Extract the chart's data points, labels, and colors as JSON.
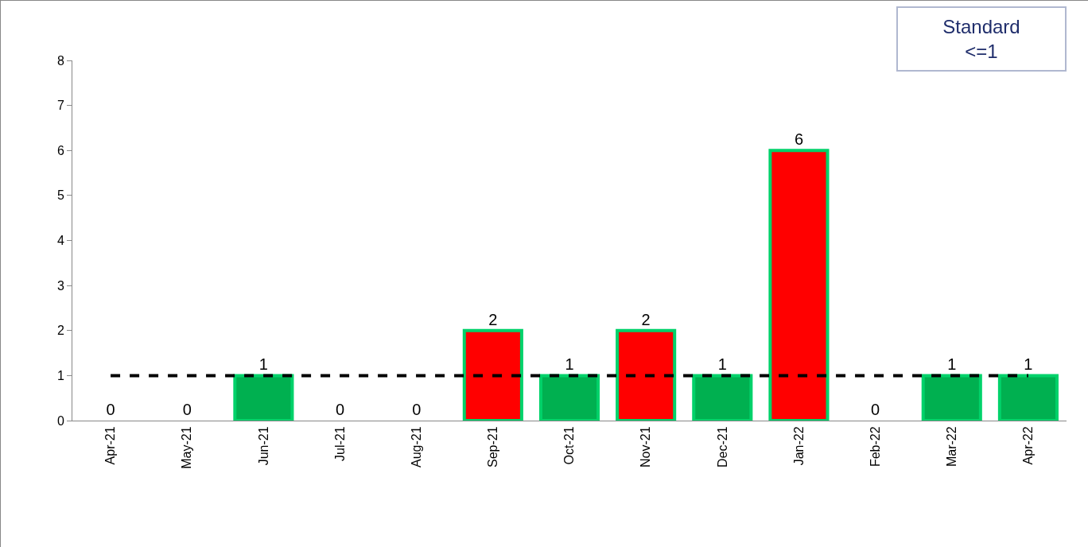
{
  "chart_data": {
    "type": "bar",
    "categories": [
      "Apr-21",
      "May-21",
      "Jun-21",
      "Jul-21",
      "Aug-21",
      "Sep-21",
      "Oct-21",
      "Nov-21",
      "Dec-21",
      "Jan-22",
      "Feb-22",
      "Mar-22",
      "Apr-22"
    ],
    "values": [
      0,
      0,
      1,
      0,
      0,
      2,
      1,
      2,
      1,
      6,
      0,
      1,
      1
    ],
    "colors": [
      "#00b050",
      "#00b050",
      "#00b050",
      "#00b050",
      "#00b050",
      "#ff0000",
      "#00b050",
      "#ff0000",
      "#00b050",
      "#ff0000",
      "#00b050",
      "#00b050",
      "#00b050"
    ],
    "ylim": [
      0,
      8
    ],
    "yticks": [
      0,
      1,
      2,
      3,
      4,
      5,
      6,
      7,
      8
    ],
    "grid": false,
    "data_labels": true,
    "annotations": [
      "Standard\n<=1"
    ],
    "ref_lines": [
      {
        "axis": "y",
        "value": 1,
        "color": "#000000",
        "line_style": "dashed"
      }
    ]
  }
}
